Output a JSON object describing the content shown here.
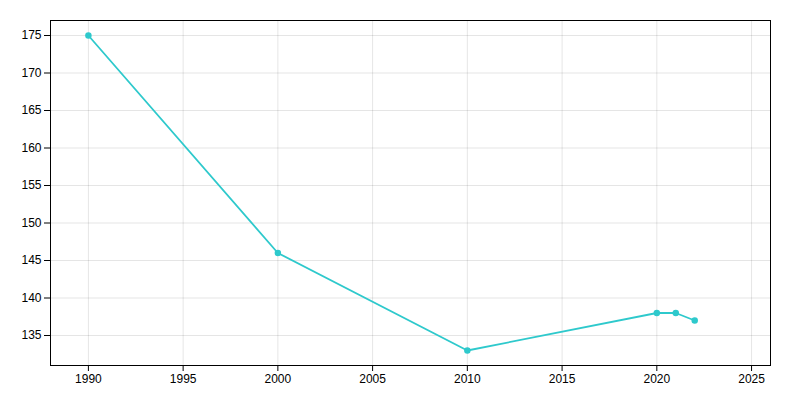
{
  "chart_data": {
    "type": "line",
    "x": [
      1990,
      2000,
      2010,
      2020,
      2021,
      2022
    ],
    "values": [
      175,
      146,
      133,
      138,
      138,
      137
    ],
    "color": "#2ec9cc",
    "marker": "circle",
    "xlim": [
      1988,
      2026
    ],
    "ylim": [
      131,
      177
    ],
    "xticks": [
      1990,
      1995,
      2000,
      2005,
      2010,
      2015,
      2020,
      2025
    ],
    "yticks": [
      135,
      140,
      145,
      150,
      155,
      160,
      165,
      170,
      175
    ],
    "grid": true
  }
}
